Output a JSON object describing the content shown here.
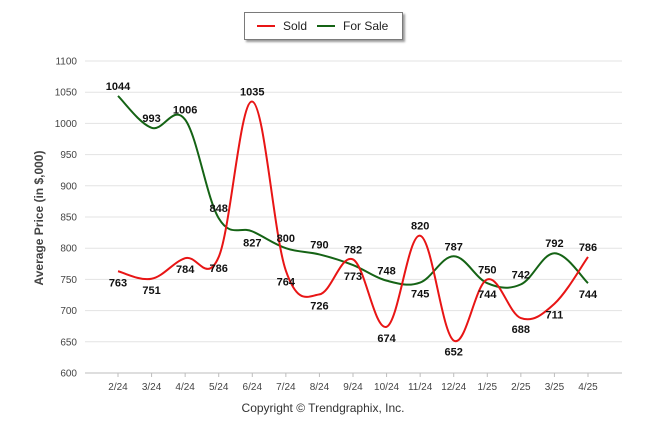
{
  "chart_data": {
    "type": "line",
    "categories": [
      "2/24",
      "3/24",
      "4/24",
      "5/24",
      "6/24",
      "7/24",
      "8/24",
      "9/24",
      "10/24",
      "11/24",
      "12/24",
      "1/25",
      "2/25",
      "3/25",
      "4/25"
    ],
    "series": [
      {
        "name": "Sold",
        "color": "#e81515",
        "values": [
          763,
          751,
          784,
          786,
          1035,
          764,
          726,
          782,
          674,
          820,
          652,
          750,
          688,
          711,
          786
        ]
      },
      {
        "name": "For Sale",
        "color": "#156315",
        "values": [
          1044,
          993,
          1006,
          848,
          827,
          800,
          790,
          773,
          748,
          745,
          787,
          744,
          742,
          792,
          744
        ]
      }
    ],
    "ylabel": "Average Price (in $,000)",
    "xlabel": "",
    "ylim": [
      600,
      1100
    ],
    "yticks": [
      600,
      650,
      700,
      750,
      800,
      850,
      900,
      950,
      1000,
      1050,
      1100
    ],
    "grid": true,
    "legend_position": "top-center"
  },
  "legend": {
    "sold_label": "Sold",
    "for_sale_label": "For Sale"
  },
  "footer": {
    "copyright": "Copyright © Trendgraphix, Inc."
  }
}
